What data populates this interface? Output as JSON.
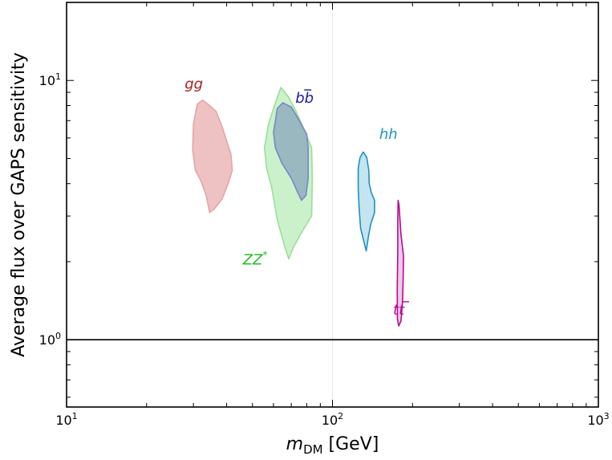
{
  "chart_data": {
    "type": "area",
    "xlabel": "m_DM [GeV]",
    "xlabel_main": "m",
    "xlabel_sub": "DM",
    "xlabel_unit": " [GeV]",
    "ylabel": "Average flux over GAPS sensitivity",
    "xscale": "log",
    "yscale": "log",
    "xlim": [
      10,
      1000
    ],
    "ylim": [
      0.55,
      20
    ],
    "x_ticks": [
      {
        "value": 10,
        "base": "10",
        "exp": "1"
      },
      {
        "value": 100,
        "base": "10",
        "exp": "2"
      },
      {
        "value": 1000,
        "base": "10",
        "exp": "3"
      }
    ],
    "y_ticks": [
      {
        "value": 1,
        "base": "10",
        "exp": "0"
      },
      {
        "value": 10,
        "base": "10",
        "exp": "1"
      }
    ],
    "reference_line": {
      "y": 1
    },
    "series": [
      {
        "name": "gg",
        "label_parts": [
          "gg",
          ""
        ],
        "label_pos": {
          "x": 27.8,
          "y": 9.3
        },
        "fill": "#e8aeae",
        "stroke": "#e8a4a4",
        "opacity": 0.75,
        "points": [
          [
            31.0,
            8.1
          ],
          [
            32.5,
            8.4
          ],
          [
            34.5,
            8.0
          ],
          [
            36.5,
            7.6
          ],
          [
            38.5,
            6.6
          ],
          [
            41.5,
            5.2
          ],
          [
            42.0,
            4.5
          ],
          [
            40.5,
            4.0
          ],
          [
            38.5,
            3.5
          ],
          [
            36.0,
            3.2
          ],
          [
            34.5,
            3.1
          ],
          [
            33.5,
            3.6
          ],
          [
            32.0,
            4.1
          ],
          [
            30.5,
            4.5
          ],
          [
            29.8,
            5.4
          ],
          [
            30.0,
            6.8
          ]
        ]
      },
      {
        "name": "ZZ*",
        "label_parts": [
          "ZZ",
          "*"
        ],
        "label_pos": {
          "x": 46.0,
          "y": 1.95
        },
        "fill": "#a8e8a8",
        "stroke": "#98e098",
        "opacity": 0.6,
        "points": [
          [
            61.0,
            8.2
          ],
          [
            64.0,
            9.4
          ],
          [
            68.0,
            8.7
          ],
          [
            73.0,
            7.6
          ],
          [
            79.0,
            6.3
          ],
          [
            83.5,
            5.5
          ],
          [
            84.0,
            4.2
          ],
          [
            83.5,
            3.0
          ],
          [
            80.0,
            2.8
          ],
          [
            75.0,
            2.5
          ],
          [
            71.0,
            2.25
          ],
          [
            68.5,
            2.05
          ],
          [
            66.0,
            2.3
          ],
          [
            62.0,
            2.9
          ],
          [
            59.0,
            3.9
          ],
          [
            56.5,
            4.6
          ],
          [
            55.5,
            5.5
          ],
          [
            57.5,
            6.8
          ]
        ]
      },
      {
        "name": "bb̄",
        "label_parts": [
          "b",
          "b"
        ],
        "label_pos": {
          "x": 72.5,
          "y": 8.2
        },
        "fill": "#8aa4bc",
        "stroke": "#7a86c4",
        "opacity": 0.75,
        "points": [
          [
            62.0,
            7.8
          ],
          [
            65.0,
            8.2
          ],
          [
            70.0,
            7.9
          ],
          [
            75.0,
            7.0
          ],
          [
            80.0,
            6.2
          ],
          [
            81.0,
            5.5
          ],
          [
            81.0,
            4.2
          ],
          [
            79.5,
            3.6
          ],
          [
            76.5,
            3.45
          ],
          [
            74.0,
            3.7
          ],
          [
            70.0,
            4.2
          ],
          [
            64.5,
            4.8
          ],
          [
            61.0,
            5.5
          ],
          [
            60.0,
            6.3
          ]
        ]
      },
      {
        "name": "hh",
        "label_parts": [
          "hh",
          ""
        ],
        "label_pos": {
          "x": 150.0,
          "y": 5.95
        },
        "fill": "#c4e4f0",
        "stroke": "#2090c0",
        "opacity": 1.0,
        "points": [
          [
            127.0,
            5.05
          ],
          [
            130.5,
            5.3
          ],
          [
            134.5,
            5.05
          ],
          [
            137.0,
            4.5
          ],
          [
            137.5,
            4.0
          ],
          [
            140.0,
            3.7
          ],
          [
            144.0,
            3.45
          ],
          [
            144.0,
            3.1
          ],
          [
            139.5,
            2.8
          ],
          [
            136.5,
            2.5
          ],
          [
            134.0,
            2.2
          ],
          [
            130.5,
            2.45
          ],
          [
            127.5,
            2.7
          ],
          [
            126.0,
            3.2
          ],
          [
            125.0,
            3.8
          ],
          [
            125.0,
            4.6
          ]
        ]
      },
      {
        "name": "tt̄",
        "label_parts": [
          "t",
          "t"
        ],
        "label_pos": {
          "x": 169.0,
          "y": 1.25
        },
        "fill": "#f0c8ec",
        "stroke": "#b0108f",
        "opacity": 1.0,
        "points": [
          [
            176.5,
            3.45
          ],
          [
            178.0,
            3.3
          ],
          [
            179.5,
            2.9
          ],
          [
            181.0,
            2.55
          ],
          [
            185.0,
            2.1
          ],
          [
            184.5,
            1.75
          ],
          [
            183.5,
            1.4
          ],
          [
            181.0,
            1.18
          ],
          [
            177.5,
            1.13
          ],
          [
            175.5,
            1.2
          ],
          [
            175.2,
            1.55
          ],
          [
            176.0,
            2.2
          ],
          [
            176.0,
            2.9
          ]
        ]
      }
    ]
  }
}
